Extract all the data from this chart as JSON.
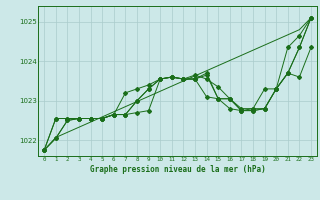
{
  "title": "Graphe pression niveau de la mer (hPa)",
  "bg_color": "#cce8e8",
  "grid_color": "#aacccc",
  "line_color": "#1a6e1a",
  "x_min": -0.5,
  "x_max": 23.5,
  "y_min": 1021.6,
  "y_max": 1025.4,
  "yticks": [
    1022,
    1023,
    1024,
    1025
  ],
  "xticks": [
    0,
    1,
    2,
    3,
    4,
    5,
    6,
    7,
    8,
    9,
    10,
    11,
    12,
    13,
    14,
    15,
    16,
    17,
    18,
    19,
    20,
    21,
    22,
    23
  ],
  "series": [
    [
      1021.75,
      1022.05,
      1022.5,
      1022.55,
      1022.55,
      1022.55,
      1022.65,
      1022.65,
      1022.7,
      1022.75,
      1023.55,
      1023.6,
      1023.55,
      1023.55,
      1023.1,
      1023.05,
      1022.8,
      1022.75,
      1022.8,
      1023.3,
      1023.3,
      1024.35,
      1024.65,
      1025.1
    ],
    [
      1021.75,
      1022.05,
      1022.5,
      1022.55,
      1022.55,
      1022.55,
      1022.65,
      1023.2,
      1023.3,
      1023.4,
      1023.55,
      1023.6,
      1023.55,
      1023.65,
      1023.55,
      1023.35,
      1023.05,
      1022.75,
      1022.75,
      1022.8,
      1023.3,
      1023.7,
      1024.35,
      1025.1
    ],
    [
      1021.75,
      1022.55,
      1022.55,
      1022.55,
      1022.55,
      1022.55,
      1022.65,
      1022.65,
      1023.0,
      1023.3,
      1023.55,
      1023.6,
      1023.55,
      1023.55,
      1023.7,
      1023.05,
      1023.05,
      1022.75,
      1022.75,
      1022.8,
      1023.3,
      1023.7,
      1023.6,
      1024.35
    ],
    [
      1021.75,
      1022.55,
      1022.55,
      1022.55,
      1022.55,
      1022.55,
      1022.65,
      1022.65,
      1023.0,
      1023.3,
      1023.55,
      1023.6,
      1023.55,
      1023.55,
      1023.65,
      1023.05,
      1023.05,
      1022.8,
      1022.8,
      1022.8,
      1023.3,
      1023.7,
      1024.35,
      1025.1
    ]
  ],
  "diagonal": [
    1021.75,
    1022.07,
    1022.2,
    1022.33,
    1022.46,
    1022.59,
    1022.72,
    1022.85,
    1022.98,
    1023.11,
    1023.24,
    1023.37,
    1023.5,
    1023.63,
    1023.76,
    1023.89,
    1024.02,
    1024.15,
    1024.28,
    1024.41,
    1024.54,
    1024.67,
    1024.8,
    1025.1
  ]
}
